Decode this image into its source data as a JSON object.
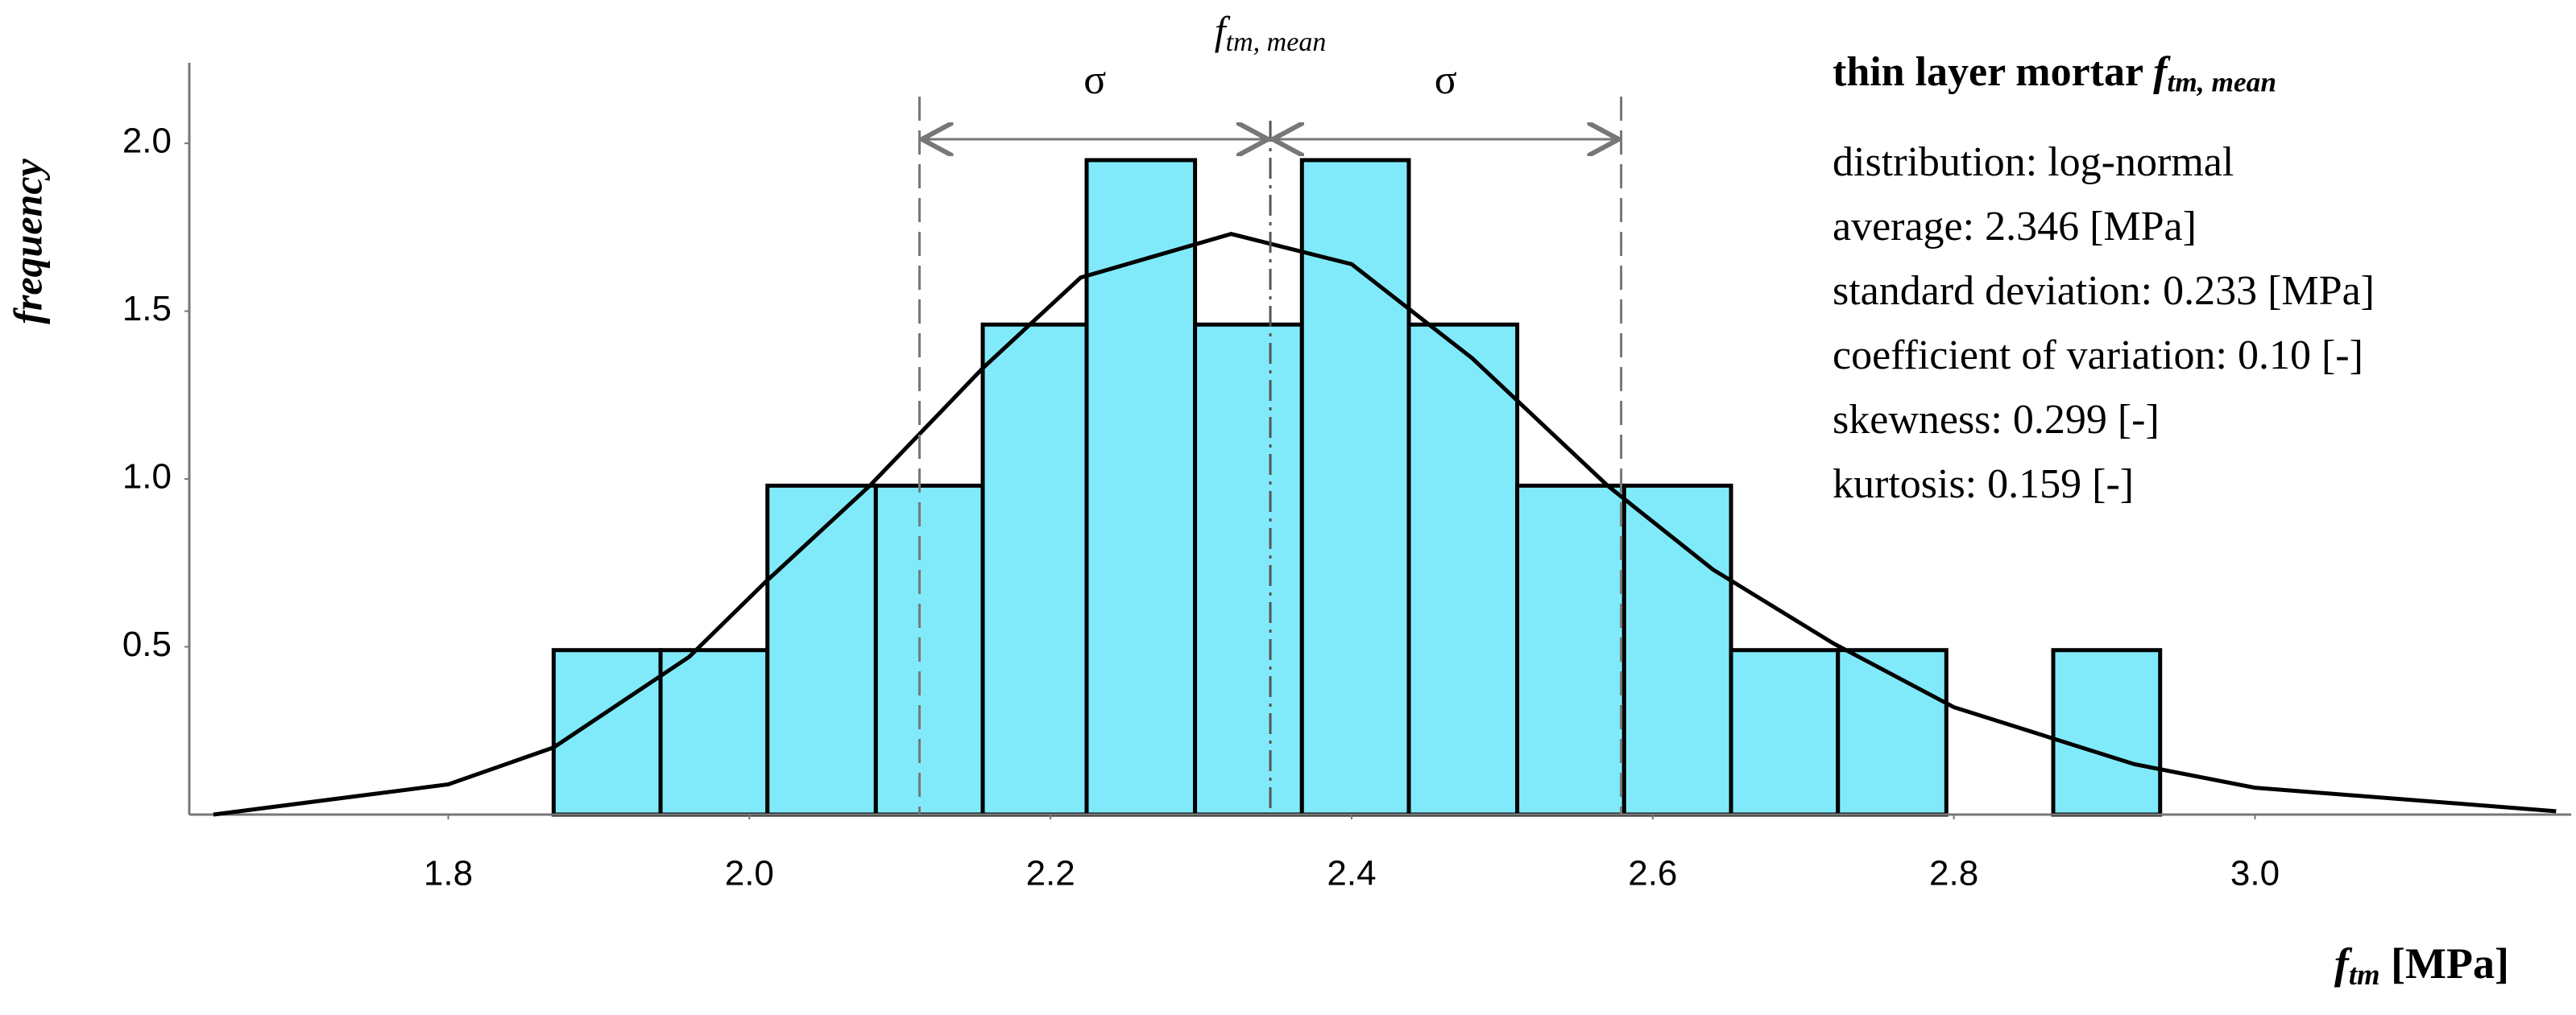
{
  "chart_data": {
    "type": "histogram",
    "bins": [
      1.87,
      1.941,
      2.012,
      2.084,
      2.155,
      2.224,
      2.296,
      2.367,
      2.438,
      2.51,
      2.581,
      2.652,
      2.723,
      2.795,
      2.866,
      2.937
    ],
    "values": [
      0.49,
      0.49,
      0.98,
      0.98,
      1.46,
      1.95,
      1.46,
      1.95,
      1.46,
      0.98,
      0.98,
      0.49,
      0.49,
      0,
      0.49
    ],
    "color": "#80eafa",
    "fit": {
      "color": "#000000",
      "x": [
        1.644,
        1.8,
        1.87,
        1.96,
        2.01,
        2.08,
        2.155,
        2.22,
        2.32,
        2.4,
        2.48,
        2.57,
        2.64,
        2.72,
        2.8,
        2.92,
        3.0,
        3.2
      ],
      "values": [
        0.0,
        0.09,
        0.2,
        0.47,
        0.69,
        0.98,
        1.33,
        1.6,
        1.73,
        1.64,
        1.36,
        0.98,
        0.73,
        0.51,
        0.32,
        0.15,
        0.08,
        0.01
      ]
    },
    "mean_line": 2.346,
    "sigma_lines": [
      2.113,
      2.579
    ],
    "mean_label": {
      "symbol": "f",
      "subscript": "tm, mean"
    },
    "sigma_label": "σ",
    "xlim": [
      1.628,
      3.21
    ],
    "ylim": [
      0,
      2.24
    ],
    "xticks": [
      1.8,
      {
        "value": 2,
        "label": "2.0"
      },
      2.2,
      2.4,
      2.6,
      2.8,
      {
        "value": 3,
        "label": "3.0"
      }
    ],
    "yticks": [
      0.5,
      {
        "value": 1,
        "label": "1.0"
      },
      1.5,
      {
        "value": 2,
        "label": "2.0"
      }
    ],
    "xlabel": {
      "symbol": "f",
      "subscript": "tm",
      "unit": " [MPa]"
    },
    "ylabel": "frequency",
    "info": {
      "title": "thin layer mortar ",
      "title_symbol": "f",
      "title_subscript": "tm, mean",
      "lines": [
        "distribution: log-normal",
        "average: 2.346 [MPa]",
        "standard deviation: 0.233 [MPa]",
        "coefficient of variation: 0.10 [-]",
        "skewness: 0.299 [-]",
        "kurtosis: 0.159 [-]"
      ]
    }
  }
}
